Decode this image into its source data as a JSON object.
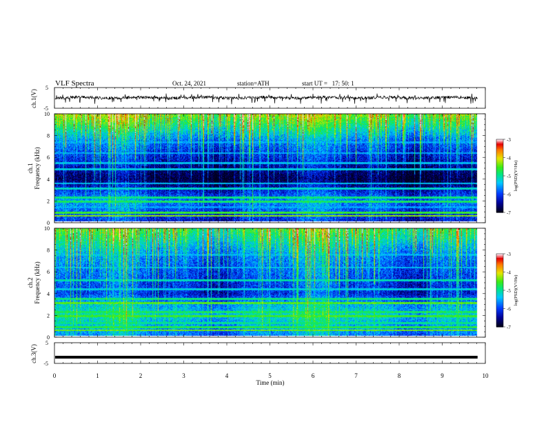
{
  "header": {
    "title": "VLF Spectra",
    "date": "Oct. 24, 2021",
    "station": "station=ATH",
    "start": "start UT =   17: 50: 1"
  },
  "chart_data": [
    {
      "type": "line",
      "name": "ch1-waveform",
      "ylabel": "ch.1(V)",
      "ylim": [
        -5,
        5
      ],
      "yticks": [
        "5",
        "-5"
      ],
      "xlim": [
        0,
        10
      ],
      "line_color": "#000000",
      "description_of_signal": "noisy waveform centered near 0 V with frequent downward spikes to about -2 V"
    },
    {
      "type": "heatmap",
      "name": "ch1-spectrogram",
      "ylabel": "ch.1\nFrequency (kHz)",
      "ylabel_line1": "ch.1",
      "ylabel_line2": "Frequency (kHz)",
      "ylim": [
        0,
        10
      ],
      "yticks": [
        "0",
        "2",
        "4",
        "6",
        "8",
        "10"
      ],
      "xlim": [
        0,
        9.8
      ],
      "colorbar": {
        "label": "log(PSD)(V²/Hz)",
        "ticks": [
          "-3",
          "-4",
          "-5",
          "-6",
          "-7"
        ],
        "range": [
          -7,
          -3
        ]
      },
      "bands_khz": [
        {
          "f": 0.6,
          "level": -4.3
        },
        {
          "f": 0.9,
          "level": -4.6
        },
        {
          "f": 1.4,
          "level": -5.6
        },
        {
          "f": 1.9,
          "level": -4.8
        },
        {
          "f": 2.3,
          "level": -4.9
        },
        {
          "f": 3.1,
          "level": -5.2
        },
        {
          "f": 3.6,
          "level": -5.4
        },
        {
          "f": 4.9,
          "level": -5.3
        },
        {
          "f": 5.5,
          "level": -5.4
        },
        {
          "f": 6.4,
          "level": -5.5
        },
        {
          "f": 7.4,
          "level": -5.6
        }
      ],
      "background_by_khz": [
        {
          "f": 0,
          "level": -6.3
        },
        {
          "f": 2,
          "level": -5.7
        },
        {
          "f": 3,
          "level": -6.3
        },
        {
          "f": 4,
          "level": -6.9
        },
        {
          "f": 5.5,
          "level": -6.4
        },
        {
          "f": 7.5,
          "level": -5.8
        },
        {
          "f": 9,
          "level": -4.9
        },
        {
          "f": 10,
          "level": -4.4
        }
      ]
    },
    {
      "type": "heatmap",
      "name": "ch2-spectrogram",
      "ylabel": "ch.2\nFrequency (kHz)",
      "ylabel_line1": "ch.2",
      "ylabel_line2": "Frequency (kHz)",
      "ylim": [
        0,
        10
      ],
      "yticks": [
        "0",
        "2",
        "4",
        "6",
        "8",
        "10"
      ],
      "xlim": [
        0,
        9.8
      ],
      "colorbar": {
        "label": "log(PSD)(V²/Hz)",
        "ticks": [
          "-3",
          "-4",
          "-5",
          "-6",
          "-7"
        ],
        "range": [
          -7,
          -3
        ]
      },
      "bands_khz": [
        {
          "f": 0.6,
          "level": -4.4
        },
        {
          "f": 0.9,
          "level": -4.7
        },
        {
          "f": 1.3,
          "level": -5.0
        },
        {
          "f": 1.9,
          "level": -4.6
        },
        {
          "f": 2.3,
          "level": -4.8
        },
        {
          "f": 3.1,
          "level": -4.5
        },
        {
          "f": 3.5,
          "level": -4.9
        },
        {
          "f": 4.4,
          "level": -5.3
        },
        {
          "f": 5.2,
          "level": -5.1
        },
        {
          "f": 6.4,
          "level": -5.4
        },
        {
          "f": 7.6,
          "level": -5.5
        }
      ],
      "background_by_khz": [
        {
          "f": 0,
          "level": -5.8
        },
        {
          "f": 2,
          "level": -5.2
        },
        {
          "f": 3,
          "level": -5.5
        },
        {
          "f": 4,
          "level": -6.2
        },
        {
          "f": 5.5,
          "level": -6.0
        },
        {
          "f": 7.5,
          "level": -5.7
        },
        {
          "f": 9,
          "level": -5.1
        },
        {
          "f": 10,
          "level": -4.7
        }
      ]
    },
    {
      "type": "line",
      "name": "ch3-waveform",
      "ylabel": "ch.3(V)",
      "ylim": [
        -5,
        5
      ],
      "yticks": [
        "5",
        "-5"
      ],
      "xlim": [
        0,
        10
      ],
      "xlabel": "Time (min)",
      "xticks": [
        "0",
        "1",
        "2",
        "3",
        "4",
        "5",
        "6",
        "7",
        "8",
        "9",
        "10"
      ],
      "constant_value": -2,
      "line_color": "#000000"
    }
  ]
}
